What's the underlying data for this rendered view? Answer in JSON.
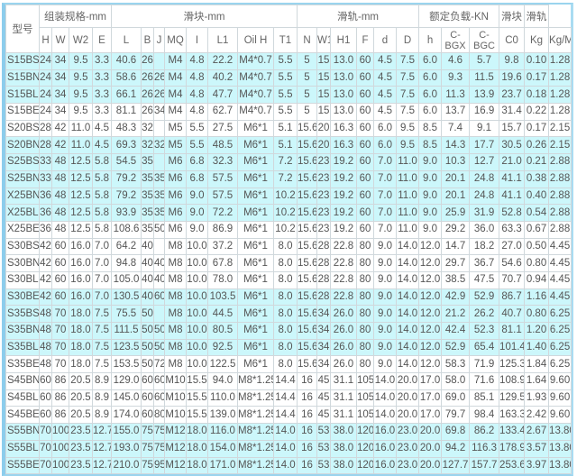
{
  "colors": {
    "highlight_row": "#ccf7fb",
    "border": "#9ad4ee",
    "text": "#555555"
  },
  "header": {
    "model": "型号",
    "groups": {
      "assembly": "组装规格-mm",
      "block": "滑块-mm",
      "rail": "滑轨-mm",
      "load": "额定负载-KN",
      "block_weight": "滑块",
      "rail_weight": "滑轨"
    },
    "columns": [
      "H",
      "W",
      "W2",
      "E",
      "L",
      "B",
      "J",
      "MQ",
      "I",
      "L1",
      "Oil H",
      "T1",
      "N",
      "W1",
      "H1",
      "F",
      "d",
      "D",
      "h",
      "C-BGX",
      "C-BGC",
      "C0",
      "Kg",
      "Kg/M"
    ]
  },
  "rows": [
    {
      "highlighted": true,
      "cells": [
        "S15BS",
        "24",
        "34",
        "9.5",
        "3.3",
        "40.6",
        "26",
        "",
        "M4",
        "4.8",
        "22.2",
        "M4*0.7",
        "5.5",
        "5",
        "15",
        "13.0",
        "60",
        "4.5",
        "7.5",
        "6.0",
        "4.6",
        "5.7",
        "9.8",
        "0.10",
        "1.28"
      ]
    },
    {
      "highlighted": true,
      "cells": [
        "S15BN",
        "24",
        "34",
        "9.5",
        "3.3",
        "58.6",
        "26",
        "26",
        "M4",
        "4.8",
        "40.2",
        "M4*0.7",
        "5.5",
        "5",
        "15",
        "13.0",
        "60",
        "4.5",
        "7.5",
        "6.0",
        "9.3",
        "11.5",
        "19.6",
        "0.17",
        "1.28"
      ]
    },
    {
      "highlighted": true,
      "cells": [
        "S15BL",
        "24",
        "34",
        "9.5",
        "3.3",
        "66.1",
        "26",
        "26",
        "M4",
        "4.8",
        "47.7",
        "M4*0.7",
        "5.5",
        "5",
        "15",
        "13.0",
        "60",
        "4.5",
        "7.5",
        "6.0",
        "11.3",
        "13.9",
        "23.7",
        "0.18",
        "1.28"
      ]
    },
    {
      "highlighted": false,
      "cells": [
        "S15BE",
        "24",
        "34",
        "9.5",
        "3.3",
        "81.1",
        "26",
        "34",
        "M4",
        "4.8",
        "62.7",
        "M4*0.7",
        "5.5",
        "5",
        "15",
        "13.0",
        "60",
        "4.5",
        "7.5",
        "6.0",
        "13.7",
        "16.9",
        "31.4",
        "0.22",
        "1.28"
      ]
    },
    {
      "highlighted": false,
      "cells": [
        "S20BS",
        "28",
        "42",
        "11.0",
        "4.5",
        "48.3",
        "32",
        "",
        "M5",
        "5.5",
        "27.5",
        "M6*1",
        "5.1",
        "15.6",
        "20",
        "16.3",
        "60",
        "6.0",
        "9.5",
        "8.5",
        "7.4",
        "9.1",
        "15.7",
        "0.17",
        "2.15"
      ]
    },
    {
      "highlighted": true,
      "cells": [
        "S20BN",
        "28",
        "42",
        "11.0",
        "4.5",
        "69.3",
        "32",
        "32",
        "M5",
        "5.5",
        "48.5",
        "M6*1",
        "5.1",
        "15.6",
        "20",
        "16.3",
        "60",
        "6.0",
        "9.5",
        "8.5",
        "14.3",
        "17.7",
        "30.5",
        "0.26",
        "2.15"
      ]
    },
    {
      "highlighted": true,
      "cells": [
        "S25BS",
        "33",
        "48",
        "12.5",
        "5.8",
        "54.5",
        "35",
        "",
        "M6",
        "6.8",
        "32.3",
        "M6*1",
        "7.2",
        "15.6",
        "23",
        "19.2",
        "60",
        "7.0",
        "11.0",
        "9.0",
        "10.3",
        "12.7",
        "21.0",
        "0.21",
        "2.88"
      ]
    },
    {
      "highlighted": true,
      "cells": [
        "S25BN",
        "33",
        "48",
        "12.5",
        "5.8",
        "79.2",
        "35",
        "35",
        "M6",
        "6.8",
        "57.5",
        "M6*1",
        "7.2",
        "15.6",
        "23",
        "19.2",
        "60",
        "7.0",
        "11.0",
        "9.0",
        "20.1",
        "24.8",
        "41.1",
        "0.38",
        "2.88"
      ]
    },
    {
      "highlighted": true,
      "cells": [
        "X25BN",
        "36",
        "48",
        "12.5",
        "5.8",
        "79.2",
        "35",
        "35",
        "M6",
        "9.0",
        "57.5",
        "M6*1",
        "10.2",
        "15.6",
        "23",
        "19.2",
        "60",
        "7.0",
        "11.0",
        "9.0",
        "20.1",
        "24.8",
        "41.1",
        "0.40",
        "2.88"
      ]
    },
    {
      "highlighted": true,
      "cells": [
        "X25BL",
        "36",
        "48",
        "12.5",
        "5.8",
        "93.9",
        "35",
        "35",
        "M6",
        "9.0",
        "72.2",
        "M6*1",
        "10.2",
        "15.6",
        "23",
        "19.2",
        "60",
        "7.0",
        "11.0",
        "9.0",
        "25.9",
        "31.9",
        "52.8",
        "0.54",
        "2.88"
      ]
    },
    {
      "highlighted": false,
      "cells": [
        "X25BE",
        "36",
        "48",
        "12.5",
        "5.8",
        "108.6",
        "35",
        "50",
        "M6",
        "9.0",
        "86.9",
        "M6*1",
        "10.2",
        "15.6",
        "23",
        "19.2",
        "60",
        "7.0",
        "11.0",
        "9.0",
        "29.2",
        "36.0",
        "63.3",
        "0.67",
        "2.88"
      ]
    },
    {
      "highlighted": false,
      "cells": [
        "S30BS",
        "42",
        "60",
        "16.0",
        "7.0",
        "64.2",
        "40",
        "",
        "M8",
        "10.0",
        "37.2",
        "M6*1",
        "8.0",
        "15.6",
        "28",
        "22.8",
        "80",
        "9.0",
        "14.0",
        "12.0",
        "14.7",
        "18.2",
        "27.0",
        "0.50",
        "4.45"
      ]
    },
    {
      "highlighted": false,
      "cells": [
        "S30BN",
        "42",
        "60",
        "16.0",
        "7.0",
        "94.8",
        "40",
        "40",
        "M8",
        "10.0",
        "67.8",
        "M6*1",
        "8.0",
        "15.6",
        "28",
        "22.8",
        "80",
        "9.0",
        "14.0",
        "12.0",
        "29.7",
        "36.7",
        "54.6",
        "0.80",
        "4.45"
      ]
    },
    {
      "highlighted": false,
      "cells": [
        "S30BL",
        "42",
        "60",
        "16.0",
        "7.0",
        "105.0",
        "40",
        "40",
        "M8",
        "10.0",
        "78.0",
        "M6*1",
        "8.0",
        "15.6",
        "28",
        "22.8",
        "80",
        "9.0",
        "14.0",
        "12.0",
        "38.5",
        "47.5",
        "70.7",
        "0.94",
        "4.45"
      ]
    },
    {
      "highlighted": true,
      "cells": [
        "S30BE",
        "42",
        "60",
        "16.0",
        "7.0",
        "130.5",
        "40",
        "60",
        "M8",
        "10.0",
        "103.5",
        "M6*1",
        "8.0",
        "15.6",
        "28",
        "22.8",
        "80",
        "9.0",
        "14.0",
        "12.0",
        "42.9",
        "52.9",
        "86.7",
        "1.16",
        "4.45"
      ]
    },
    {
      "highlighted": true,
      "cells": [
        "S35BS",
        "48",
        "70",
        "18.0",
        "7.5",
        "75.5",
        "50",
        "",
        "M8",
        "10.0",
        "44.5",
        "M6*1",
        "8.0",
        "15.6",
        "34",
        "26.0",
        "80",
        "9.0",
        "14.0",
        "12.0",
        "21.2",
        "26.2",
        "40.7",
        "0.80",
        "6.25"
      ]
    },
    {
      "highlighted": true,
      "cells": [
        "S35BN",
        "48",
        "70",
        "18.0",
        "7.5",
        "111.5",
        "50",
        "50",
        "M8",
        "10.0",
        "80.5",
        "M6*1",
        "8.0",
        "15.6",
        "34",
        "26.0",
        "80",
        "9.0",
        "14.0",
        "12.0",
        "42.4",
        "52.3",
        "81.1",
        "1.20",
        "6.25"
      ]
    },
    {
      "highlighted": true,
      "cells": [
        "S35BL",
        "48",
        "70",
        "18.0",
        "7.5",
        "123.5",
        "50",
        "50",
        "M8",
        "10.0",
        "92.5",
        "M6*1",
        "8.0",
        "15.6",
        "34",
        "26.0",
        "80",
        "9.0",
        "14.0",
        "12.0",
        "52.9",
        "65.4",
        "101.4",
        "1.40",
        "6.25"
      ]
    },
    {
      "highlighted": false,
      "cells": [
        "S35BE",
        "48",
        "70",
        "18.0",
        "7.5",
        "153.5",
        "50",
        "72",
        "M8",
        "10.0",
        "122.5",
        "M6*1",
        "8.0",
        "15.6",
        "34",
        "26.0",
        "80",
        "9.0",
        "14.0",
        "12.0",
        "58.3",
        "71.9",
        "125.3",
        "1.84",
        "6.25"
      ]
    },
    {
      "highlighted": false,
      "cells": [
        "S45BN",
        "60",
        "86",
        "20.5",
        "8.9",
        "129.0",
        "60",
        "60",
        "M10",
        "15.5",
        "94.0",
        "M8*1.25",
        "14.4",
        "16",
        "45",
        "31.1",
        "105",
        "14.0",
        "20.0",
        "17.0",
        "58.0",
        "71.6",
        "108.9",
        "1.64",
        "9.60"
      ]
    },
    {
      "highlighted": false,
      "cells": [
        "S45BL",
        "60",
        "86",
        "20.5",
        "8.9",
        "145.0",
        "60",
        "60",
        "M10",
        "15.5",
        "110.0",
        "M8*1.25",
        "14.4",
        "16",
        "45",
        "31.1",
        "105",
        "14.0",
        "20.0",
        "17.0",
        "69.0",
        "85.1",
        "129.5",
        "1.93",
        "9.60"
      ]
    },
    {
      "highlighted": false,
      "cells": [
        "S45BE",
        "60",
        "86",
        "20.5",
        "8.9",
        "174.0",
        "60",
        "80",
        "M10",
        "15.5",
        "139.0",
        "M8*1.25",
        "14.4",
        "16",
        "45",
        "31.1",
        "105",
        "14.0",
        "20.0",
        "17.0",
        "79.7",
        "98.4",
        "163.3",
        "2.42",
        "9.60"
      ]
    },
    {
      "highlighted": true,
      "cells": [
        "S55BN",
        "70",
        "100",
        "23.5",
        "12.7",
        "155.0",
        "75",
        "75",
        "M12",
        "18.0",
        "116.0",
        "M8*1.25",
        "14.0",
        "16",
        "53",
        "38.0",
        "120",
        "16.0",
        "23.0",
        "20.0",
        "69.8",
        "86.2",
        "133.4",
        "2.67",
        "13.80"
      ]
    },
    {
      "highlighted": true,
      "cells": [
        "S55BL",
        "70",
        "100",
        "23.5",
        "12.7",
        "193.0",
        "75",
        "75",
        "M12",
        "18.0",
        "154.0",
        "M8*1.25",
        "14.0",
        "16",
        "53",
        "38.0",
        "120",
        "16.0",
        "23.0",
        "20.0",
        "94.2",
        "116.3",
        "178.9",
        "3.57",
        "13.80"
      ]
    },
    {
      "highlighted": true,
      "cells": [
        "S55BE",
        "70",
        "100",
        "23.5",
        "12.7",
        "210.0",
        "75",
        "95",
        "M12",
        "18.0",
        "171.0",
        "M8*1.25",
        "14.0",
        "16",
        "53",
        "38.0",
        "120",
        "16.0",
        "23.0",
        "20.0",
        "127.7",
        "157.7",
        "253.6",
        "3.97",
        "13.80"
      ]
    }
  ]
}
